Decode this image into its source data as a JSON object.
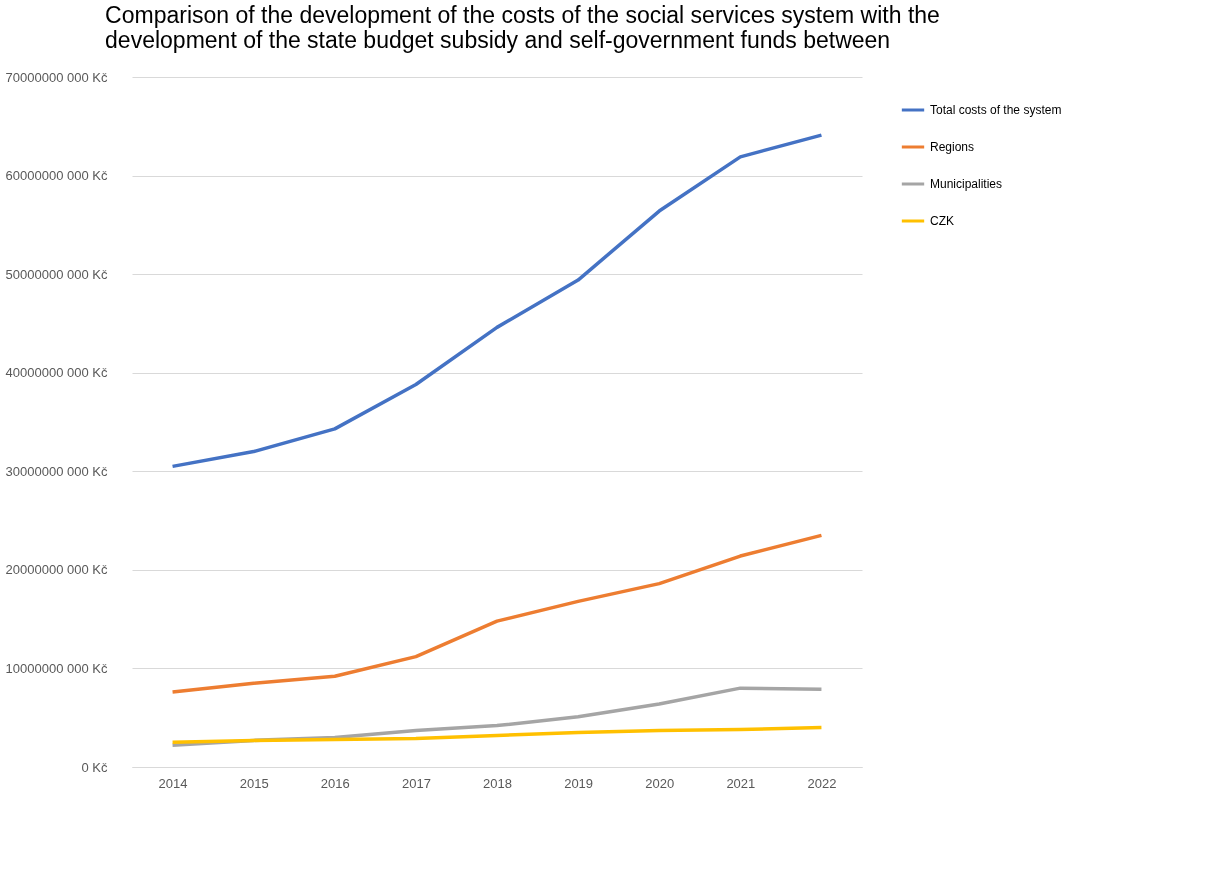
{
  "chart_data": {
    "type": "line",
    "title": "Comparison of the development of the costs of the social services system with the development of the state budget subsidy and self-government funds between",
    "categories": [
      "2014",
      "2015",
      "2016",
      "2017",
      "2018",
      "2019",
      "2020",
      "2021",
      "2022"
    ],
    "series": [
      {
        "name": "Total costs of the system",
        "color": "#4472c4",
        "values": [
          30500000000,
          32000000000,
          34300000000,
          38800000000,
          44600000000,
          49400000000,
          56400000000,
          61900000000,
          64100000000
        ]
      },
      {
        "name": "Regions",
        "color": "#ed7d31",
        "values": [
          7600000000,
          8500000000,
          9200000000,
          11200000000,
          14800000000,
          16800000000,
          18600000000,
          21400000000,
          23500000000
        ]
      },
      {
        "name": "Municipalities",
        "color": "#a5a5a5",
        "values": [
          2200000000,
          2700000000,
          3000000000,
          3700000000,
          4200000000,
          5100000000,
          6400000000,
          8000000000,
          7900000000
        ]
      },
      {
        "name": "CZK",
        "color": "#ffc000",
        "values": [
          2500000000,
          2700000000,
          2800000000,
          2900000000,
          3200000000,
          3500000000,
          3700000000,
          3800000000,
          4000000000
        ]
      }
    ],
    "ylim": [
      0,
      70000000000
    ],
    "yticks": [
      {
        "value": 0,
        "label": "0 Kč"
      },
      {
        "value": 10000000000,
        "label": "10000000 000 Kč"
      },
      {
        "value": 20000000000,
        "label": "20000000 000 Kč"
      },
      {
        "value": 30000000000,
        "label": "30000000 000 Kč"
      },
      {
        "value": 40000000000,
        "label": "40000000 000 Kč"
      },
      {
        "value": 50000000000,
        "label": "50000000 000 Kč"
      },
      {
        "value": 60000000000,
        "label": "60000000 000 Kč"
      },
      {
        "value": 70000000000,
        "label": "70000000 000 Kč"
      }
    ],
    "grid": "y",
    "legend": "right",
    "marker": "none",
    "line_style": "solid"
  }
}
